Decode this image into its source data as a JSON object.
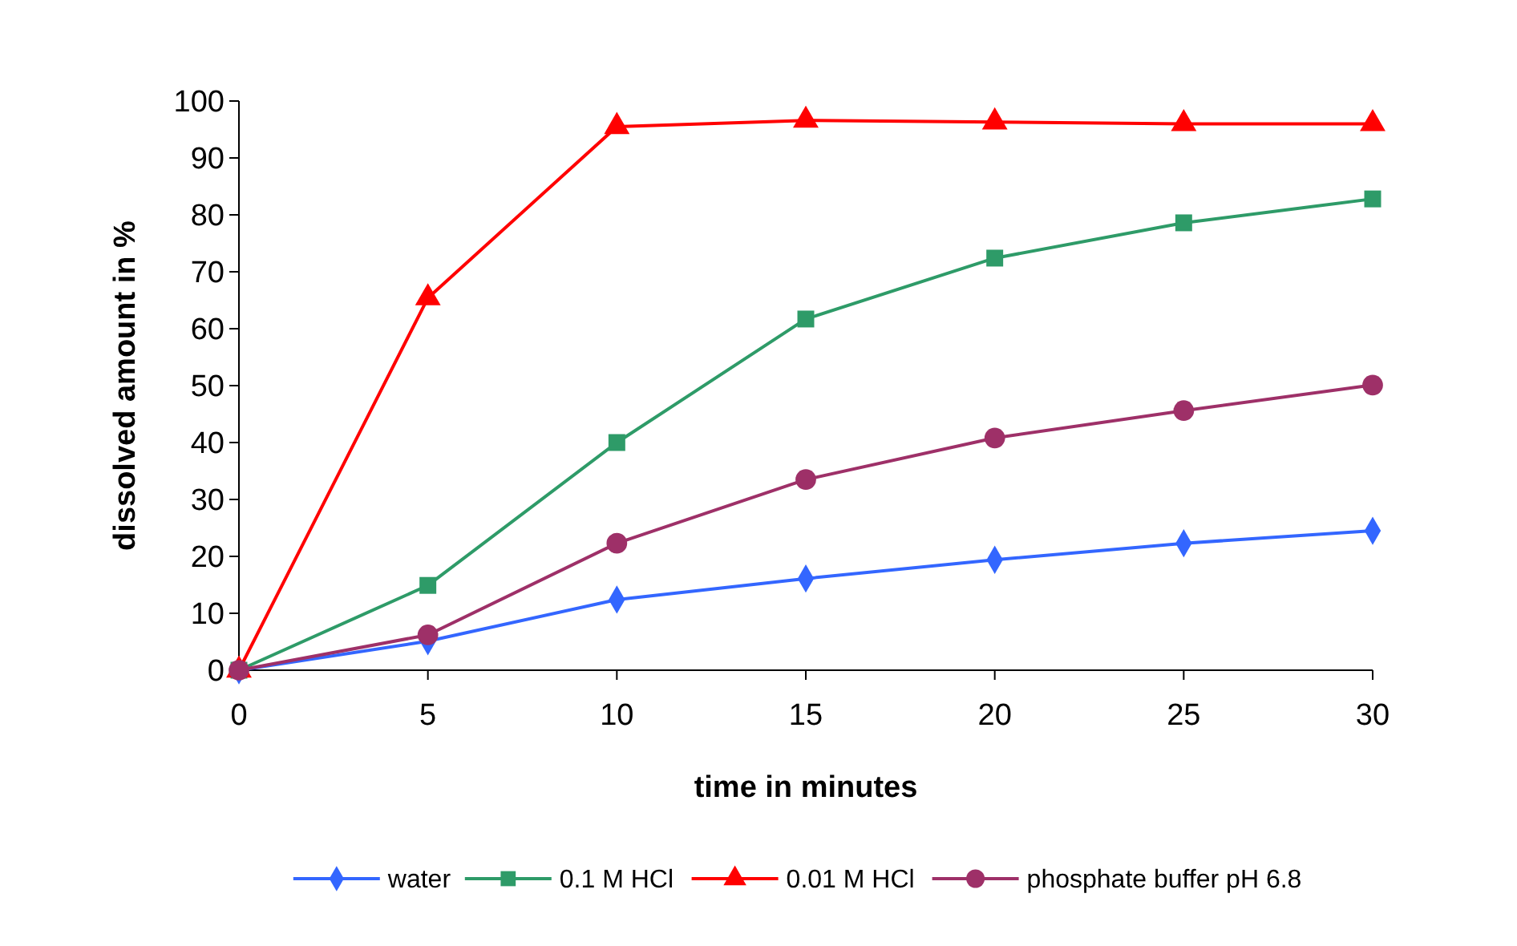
{
  "chart_data": {
    "type": "line",
    "xlabel": "time in minutes",
    "ylabel": "dissolved amount in %",
    "x": [
      0,
      5,
      10,
      15,
      20,
      25,
      30
    ],
    "xlim": [
      0,
      30
    ],
    "xticks": [
      0,
      5,
      10,
      15,
      20,
      25,
      30
    ],
    "ylim": [
      0,
      100
    ],
    "yticks": [
      0,
      10,
      20,
      30,
      40,
      50,
      60,
      70,
      80,
      90,
      100
    ],
    "grid": false,
    "legend": "bottom",
    "line_style": "solid",
    "series": [
      {
        "name": "water",
        "color": "#3366ff",
        "marker": "diamond",
        "values": [
          0,
          5.1,
          12.4,
          16.1,
          19.4,
          22.3,
          24.5
        ]
      },
      {
        "name": "0.1 M HCl",
        "color": "#2e9b68",
        "marker": "square",
        "values": [
          0,
          14.9,
          40,
          61.7,
          72.4,
          78.6,
          82.8
        ]
      },
      {
        "name": "0.01 M HCl",
        "color": "#ff0000",
        "marker": "triangle",
        "values": [
          0,
          65.4,
          95.5,
          96.6,
          96.3,
          96,
          96
        ]
      },
      {
        "name": "phosphate buffer pH 6.8",
        "color": "#9e3068",
        "marker": "circle",
        "values": [
          0,
          6.2,
          22.3,
          33.5,
          40.8,
          45.6,
          50.1
        ]
      }
    ]
  }
}
